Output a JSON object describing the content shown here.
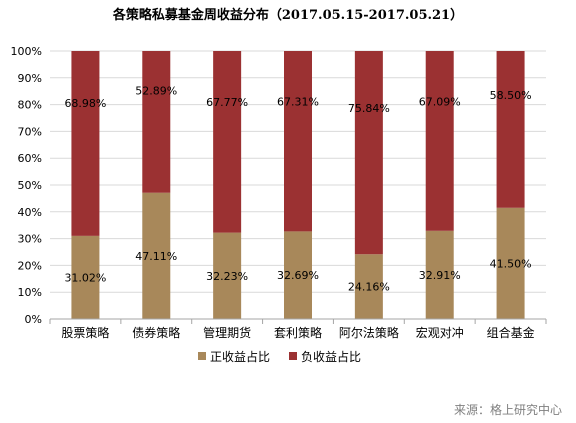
{
  "source": "来源：格上研究中心",
  "colors": {
    "positive": "#A8885A",
    "negative": "#9B3132",
    "gridline": "#D9D9D9",
    "axis": "#A6A6A6"
  },
  "chart_data": {
    "type": "bar",
    "stacked": true,
    "title": "各策略私募基金周收益分布（2017.05.15-2017.05.21）",
    "xlabel": "",
    "ylabel": "",
    "ylim": [
      0,
      100
    ],
    "y_ticks": [
      "0%",
      "10%",
      "20%",
      "30%",
      "40%",
      "50%",
      "60%",
      "70%",
      "80%",
      "90%",
      "100%"
    ],
    "grid": true,
    "legend_position": "bottom",
    "categories": [
      "股票策略",
      "债券策略",
      "管理期货",
      "套利策略",
      "阿尔法策略",
      "宏观对冲",
      "组合基金"
    ],
    "series": [
      {
        "name": "正收益占比",
        "color": "#A8885A",
        "values": [
          31.02,
          47.11,
          32.23,
          32.69,
          24.16,
          32.91,
          41.5
        ],
        "labels": [
          "31.02%",
          "47.11%",
          "32.23%",
          "32.69%",
          "24.16%",
          "32.91%",
          "41.50%"
        ]
      },
      {
        "name": "负收益占比",
        "color": "#9B3132",
        "values": [
          68.98,
          52.89,
          67.77,
          67.31,
          75.84,
          67.09,
          58.5
        ],
        "labels": [
          "68.98%",
          "52.89%",
          "67.77%",
          "67.31%",
          "75.84%",
          "67.09%",
          "58.50%"
        ]
      }
    ]
  }
}
